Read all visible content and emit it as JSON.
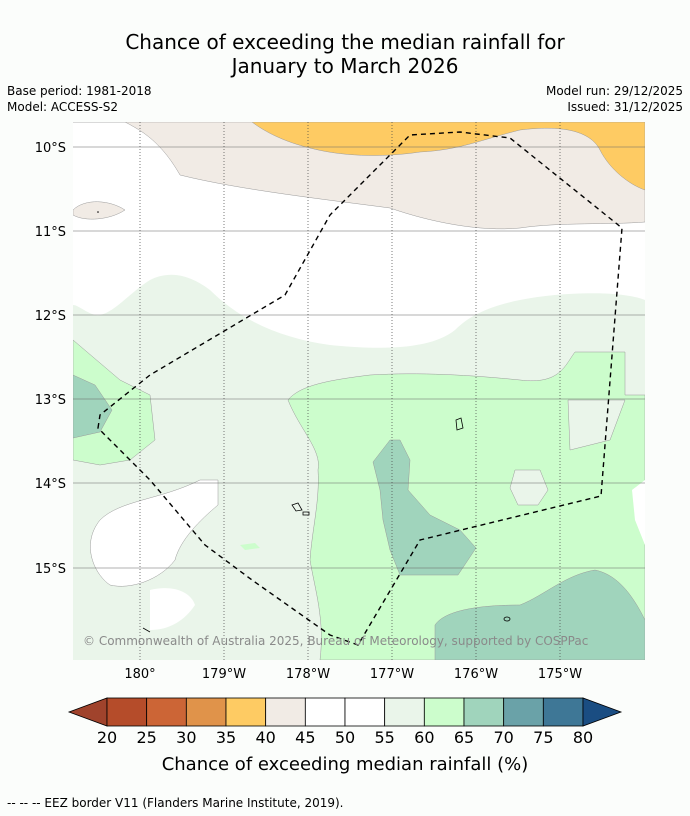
{
  "title_line1": "Chance of exceeding the median rainfall for",
  "title_line2": "January to March 2026",
  "meta": {
    "base_period": "Base period: 1981-2018",
    "model": "Model: ACCESS-S2",
    "model_run": "Model run: 29/12/2025",
    "issued": "Issued: 31/12/2025"
  },
  "map": {
    "lat_labels": [
      "10°S",
      "11°S",
      "12°S",
      "13°S",
      "14°S",
      "15°S"
    ],
    "lon_labels": [
      "180°",
      "179°W",
      "178°W",
      "177°W",
      "176°W",
      "175°W"
    ],
    "attribution": "© Commonwealth of Australia 2025, Bureau of Meteorology, supported by COSPPac"
  },
  "colorbar": {
    "ticks": [
      "20",
      "25",
      "30",
      "35",
      "40",
      "45",
      "50",
      "55",
      "60",
      "65",
      "70",
      "75",
      "80"
    ],
    "colors": [
      "#a0432c",
      "#b54c2a",
      "#cc6536",
      "#e0934a",
      "#fecb63",
      "#f1ebe5",
      "#ffffff",
      "#ffffff",
      "#eaf5ea",
      "#ccfdcc",
      "#a0d4bc",
      "#6aa2a8",
      "#3e7796",
      "#1a4d82"
    ],
    "label": "Chance of exceeding median rainfall (%)"
  },
  "footnote": "--  --  -- EEZ border V11 (Flanders Marine Institute, 2019)."
}
